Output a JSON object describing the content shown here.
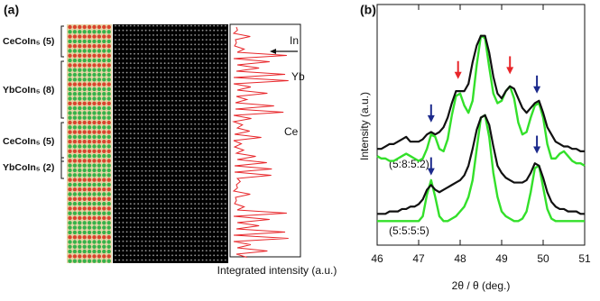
{
  "panel_a": {
    "label": "(a)",
    "layers": [
      "CeCoIn₅ (5)",
      "YbCoIn₅ (8)",
      "CeCoIn₅ (5)",
      "YbCoIn₅ (2)"
    ],
    "profile_labels": [
      "In",
      "Yb",
      "Ce"
    ],
    "xlabel": "Integrated intensity (a.u.)"
  },
  "chart_data": {
    "type": "line",
    "panel_label": "(b)",
    "xlabel": "2θ / θ (deg.)",
    "ylabel": "Intensity (a.u.)",
    "annotations": [
      "(5:8:5:2)",
      "(5:5:5:5)"
    ],
    "xlim": [
      46,
      51
    ],
    "xticks": [
      46,
      47,
      48,
      49,
      50,
      51
    ],
    "ylim": [
      0,
      100
    ],
    "x": [
      46.0,
      46.1,
      46.2,
      46.3,
      46.4,
      46.5,
      46.6,
      46.7,
      46.8,
      46.9,
      47.0,
      47.1,
      47.2,
      47.3,
      47.4,
      47.5,
      47.6,
      47.7,
      47.8,
      47.9,
      48.0,
      48.1,
      48.2,
      48.3,
      48.4,
      48.5,
      48.6,
      48.7,
      48.8,
      48.9,
      49.0,
      49.1,
      49.2,
      49.3,
      49.4,
      49.5,
      49.6,
      49.7,
      49.8,
      49.9,
      50.0,
      50.1,
      50.2,
      50.3,
      50.4,
      50.5,
      50.6,
      50.7,
      50.8,
      50.9,
      51.0
    ],
    "series": [
      {
        "color": "#33e02a",
        "values": [
          37,
          36,
          36,
          35,
          35,
          36,
          37,
          38,
          37,
          36,
          35,
          36,
          40,
          46,
          45,
          40,
          39,
          44,
          54,
          62,
          63,
          58,
          55,
          60,
          75,
          87,
          86,
          74,
          63,
          59,
          60,
          64,
          66,
          61,
          51,
          46,
          47,
          53,
          58,
          59,
          53,
          42,
          36,
          36,
          38,
          39,
          37,
          35,
          34,
          34,
          33
        ]
      },
      {
        "color": "#111111",
        "values": [
          40,
          40,
          41,
          42,
          42,
          43,
          44,
          45,
          43,
          43,
          43,
          44,
          46,
          47,
          46,
          47,
          49,
          53,
          59,
          64,
          64,
          64,
          67,
          76,
          83,
          87,
          87,
          80,
          70,
          63,
          61,
          64,
          66,
          65,
          61,
          57,
          55,
          57,
          59,
          60,
          55,
          49,
          46,
          43,
          42,
          41,
          41,
          40,
          40,
          39,
          39
        ]
      },
      {
        "color": "#33e02a",
        "values": [
          10,
          10,
          10,
          10,
          10,
          10,
          10,
          10,
          10,
          10,
          10,
          12,
          21,
          27,
          20,
          12,
          10,
          10,
          11,
          12,
          14,
          16,
          20,
          27,
          40,
          53,
          54,
          45,
          30,
          20,
          14,
          12,
          11,
          10,
          10,
          11,
          14,
          22,
          32,
          33,
          24,
          15,
          11,
          10,
          10,
          10,
          10,
          10,
          10,
          10,
          10
        ]
      },
      {
        "color": "#111111",
        "values": [
          13,
          13,
          13,
          14,
          14,
          14,
          15,
          15,
          16,
          16,
          17,
          19,
          23,
          25,
          23,
          22,
          23,
          24,
          25,
          26,
          27,
          29,
          33,
          40,
          48,
          53,
          54,
          50,
          41,
          33,
          30,
          28,
          27,
          26,
          26,
          26,
          27,
          30,
          34,
          33,
          28,
          22,
          18,
          16,
          15,
          15,
          14,
          14,
          14,
          13,
          13
        ]
      }
    ],
    "markers": [
      {
        "x": 47.95,
        "y": 69,
        "color": "#e8262a"
      },
      {
        "x": 49.2,
        "y": 71,
        "color": "#e8262a"
      },
      {
        "x": 47.3,
        "y": 51,
        "color": "#1c2a8c"
      },
      {
        "x": 49.85,
        "y": 63,
        "color": "#1c2a8c"
      },
      {
        "x": 47.3,
        "y": 29,
        "color": "#1c2a8c"
      },
      {
        "x": 49.85,
        "y": 38,
        "color": "#1c2a8c"
      }
    ]
  }
}
